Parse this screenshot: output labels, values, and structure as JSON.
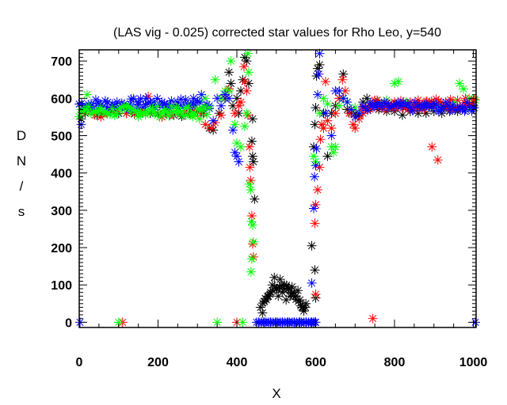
{
  "chart_data": {
    "type": "scatter",
    "title": "(LAS vig - 0.025) corrected star values for Rho Leo, y=540",
    "xlabel": "X",
    "ylabel": "DN/s",
    "ylabel_chars": [
      "D",
      "N",
      "/",
      "s"
    ],
    "xlim": [
      0,
      1007
    ],
    "ylim": [
      -14,
      730
    ],
    "xticks": [
      0,
      200,
      400,
      600,
      800,
      1000
    ],
    "xtick_labels": [
      "0",
      "200",
      "400",
      "600",
      "800",
      "1000"
    ],
    "yticks": [
      0,
      100,
      200,
      300,
      400,
      500,
      600,
      700
    ],
    "ytick_labels": [
      "0",
      "100",
      "200",
      "300",
      "400",
      "500",
      "600",
      "700"
    ],
    "x_minor_step": 50,
    "y_minor_step": 10,
    "grid": false,
    "marker": "asterisk",
    "series": [
      {
        "name": "black",
        "color": "#000000",
        "points": [
          [
            5,
            545
          ],
          [
            15,
            560
          ],
          [
            30,
            565
          ],
          [
            45,
            555
          ],
          [
            60,
            560
          ],
          [
            80,
            565
          ],
          [
            100,
            560
          ],
          [
            120,
            560
          ],
          [
            140,
            558
          ],
          [
            160,
            562
          ],
          [
            180,
            560
          ],
          [
            200,
            558
          ],
          [
            220,
            560
          ],
          [
            240,
            555
          ],
          [
            260,
            552
          ],
          [
            280,
            560
          ],
          [
            300,
            565
          ],
          [
            315,
            560
          ],
          [
            330,
            520
          ],
          [
            340,
            515
          ],
          [
            355,
            560
          ],
          [
            370,
            600
          ],
          [
            380,
            670
          ],
          [
            385,
            640
          ],
          [
            390,
            580
          ],
          [
            400,
            600
          ],
          [
            405,
            560
          ],
          [
            410,
            620
          ],
          [
            415,
            650
          ],
          [
            420,
            710
          ],
          [
            425,
            700
          ],
          [
            430,
            640
          ],
          [
            440,
            545
          ],
          [
            438,
            485
          ],
          [
            440,
            445
          ],
          [
            442,
            430
          ],
          [
            445,
            330
          ],
          [
            455,
            0
          ],
          [
            465,
            25
          ],
          [
            470,
            55
          ],
          [
            475,
            60
          ],
          [
            480,
            70
          ],
          [
            485,
            80
          ],
          [
            490,
            100
          ],
          [
            495,
            120
          ],
          [
            500,
            90
          ],
          [
            505,
            70
          ],
          [
            510,
            115
          ],
          [
            515,
            80
          ],
          [
            520,
            100
          ],
          [
            525,
            60
          ],
          [
            530,
            90
          ],
          [
            535,
            70
          ],
          [
            540,
            95
          ],
          [
            545,
            80
          ],
          [
            550,
            70
          ],
          [
            555,
            85
          ],
          [
            560,
            60
          ],
          [
            565,
            40
          ],
          [
            570,
            30
          ],
          [
            575,
            50
          ],
          [
            590,
            205
          ],
          [
            598,
            140
          ],
          [
            600,
            65
          ],
          [
            595,
            470
          ],
          [
            598,
            530
          ],
          [
            600,
            575
          ],
          [
            602,
            660
          ],
          [
            605,
            680
          ],
          [
            610,
            690
          ],
          [
            620,
            560
          ],
          [
            630,
            445
          ],
          [
            640,
            560
          ],
          [
            650,
            580
          ],
          [
            660,
            600
          ],
          [
            670,
            665
          ],
          [
            680,
            570
          ],
          [
            690,
            560
          ],
          [
            700,
            560
          ],
          [
            710,
            555
          ],
          [
            720,
            590
          ],
          [
            730,
            600
          ],
          [
            740,
            575
          ],
          [
            760,
            570
          ],
          [
            780,
            565
          ],
          [
            800,
            565
          ],
          [
            820,
            555
          ],
          [
            840,
            565
          ],
          [
            860,
            560
          ],
          [
            880,
            560
          ],
          [
            900,
            565
          ],
          [
            920,
            560
          ],
          [
            940,
            565
          ],
          [
            960,
            565
          ],
          [
            980,
            570
          ],
          [
            1000,
            575
          ]
        ]
      },
      {
        "name": "red",
        "color": "#ff0000",
        "points": [
          [
            10,
            565
          ],
          [
            25,
            570
          ],
          [
            40,
            555
          ],
          [
            55,
            550
          ],
          [
            70,
            560
          ],
          [
            90,
            565
          ],
          [
            110,
            0
          ],
          [
            120,
            560
          ],
          [
            140,
            560
          ],
          [
            160,
            565
          ],
          [
            175,
            605
          ],
          [
            190,
            565
          ],
          [
            210,
            550
          ],
          [
            230,
            555
          ],
          [
            250,
            560
          ],
          [
            270,
            565
          ],
          [
            290,
            570
          ],
          [
            310,
            560
          ],
          [
            320,
            530
          ],
          [
            335,
            520
          ],
          [
            345,
            535
          ],
          [
            360,
            555
          ],
          [
            370,
            610
          ],
          [
            380,
            625
          ],
          [
            395,
            560
          ],
          [
            400,
            0
          ],
          [
            405,
            580
          ],
          [
            410,
            590
          ],
          [
            418,
            685
          ],
          [
            420,
            645
          ],
          [
            425,
            620
          ],
          [
            428,
            555
          ],
          [
            432,
            470
          ],
          [
            433,
            415
          ],
          [
            435,
            380
          ],
          [
            438,
            285
          ],
          [
            440,
            210
          ],
          [
            442,
            175
          ],
          [
            600,
            75
          ],
          [
            598,
            265
          ],
          [
            600,
            315
          ],
          [
            605,
            355
          ],
          [
            610,
            415
          ],
          [
            612,
            490
          ],
          [
            615,
            530
          ],
          [
            620,
            520
          ],
          [
            625,
            645
          ],
          [
            630,
            540
          ],
          [
            640,
            520
          ],
          [
            650,
            560
          ],
          [
            660,
            600
          ],
          [
            668,
            650
          ],
          [
            675,
            620
          ],
          [
            685,
            560
          ],
          [
            695,
            530
          ],
          [
            700,
            520
          ],
          [
            710,
            545
          ],
          [
            720,
            560
          ],
          [
            735,
            575
          ],
          [
            745,
            10
          ],
          [
            760,
            590
          ],
          [
            780,
            595
          ],
          [
            800,
            590
          ],
          [
            820,
            580
          ],
          [
            840,
            590
          ],
          [
            860,
            595
          ],
          [
            880,
            590
          ],
          [
            895,
            470
          ],
          [
            910,
            435
          ],
          [
            920,
            580
          ],
          [
            940,
            590
          ],
          [
            960,
            595
          ],
          [
            980,
            600
          ],
          [
            1000,
            595
          ]
        ]
      },
      {
        "name": "green",
        "color": "#00ff00",
        "points": [
          [
            5,
            570
          ],
          [
            20,
            610
          ],
          [
            35,
            565
          ],
          [
            50,
            570
          ],
          [
            70,
            570
          ],
          [
            90,
            575
          ],
          [
            100,
            0
          ],
          [
            110,
            570
          ],
          [
            130,
            565
          ],
          [
            150,
            560
          ],
          [
            170,
            565
          ],
          [
            190,
            565
          ],
          [
            210,
            560
          ],
          [
            230,
            565
          ],
          [
            250,
            560
          ],
          [
            270,
            555
          ],
          [
            290,
            560
          ],
          [
            305,
            545
          ],
          [
            320,
            600
          ],
          [
            345,
            650
          ],
          [
            350,
            0
          ],
          [
            360,
            600
          ],
          [
            370,
            620
          ],
          [
            380,
            620
          ],
          [
            385,
            700
          ],
          [
            395,
            530
          ],
          [
            400,
            480
          ],
          [
            410,
            470
          ],
          [
            415,
            0
          ],
          [
            420,
            525
          ],
          [
            425,
            560
          ],
          [
            428,
            720
          ],
          [
            430,
            670
          ],
          [
            432,
            370
          ],
          [
            435,
            355
          ],
          [
            437,
            270
          ],
          [
            440,
            260
          ],
          [
            442,
            215
          ],
          [
            438,
            170
          ],
          [
            436,
            135
          ],
          [
            595,
            445
          ],
          [
            600,
            430
          ],
          [
            610,
            560
          ],
          [
            620,
            600
          ],
          [
            630,
            585
          ],
          [
            640,
            470
          ],
          [
            645,
            455
          ],
          [
            650,
            470
          ],
          [
            660,
            580
          ],
          [
            670,
            600
          ],
          [
            680,
            590
          ],
          [
            700,
            575
          ],
          [
            720,
            575
          ],
          [
            740,
            580
          ],
          [
            760,
            590
          ],
          [
            780,
            595
          ],
          [
            800,
            640
          ],
          [
            810,
            645
          ],
          [
            830,
            590
          ],
          [
            850,
            575
          ],
          [
            870,
            580
          ],
          [
            890,
            580
          ],
          [
            910,
            575
          ],
          [
            930,
            580
          ],
          [
            950,
            590
          ],
          [
            965,
            640
          ],
          [
            975,
            625
          ],
          [
            990,
            600
          ],
          [
            1005,
            595
          ]
        ]
      },
      {
        "name": "blue",
        "color": "#0000ff",
        "points": [
          [
            2,
            0
          ],
          [
            5,
            530
          ],
          [
            15,
            575
          ],
          [
            30,
            580
          ],
          [
            50,
            585
          ],
          [
            70,
            575
          ],
          [
            90,
            580
          ],
          [
            110,
            580
          ],
          [
            130,
            585
          ],
          [
            150,
            590
          ],
          [
            170,
            600
          ],
          [
            190,
            590
          ],
          [
            210,
            590
          ],
          [
            230,
            585
          ],
          [
            250,
            590
          ],
          [
            270,
            585
          ],
          [
            290,
            600
          ],
          [
            310,
            610
          ],
          [
            330,
            580
          ],
          [
            340,
            540
          ],
          [
            350,
            600
          ],
          [
            360,
            580
          ],
          [
            370,
            610
          ],
          [
            380,
            600
          ],
          [
            390,
            515
          ],
          [
            395,
            455
          ],
          [
            400,
            445
          ],
          [
            405,
            430
          ],
          [
            455,
            0
          ],
          [
            470,
            0
          ],
          [
            485,
            0
          ],
          [
            500,
            0
          ],
          [
            515,
            0
          ],
          [
            530,
            0
          ],
          [
            545,
            0
          ],
          [
            560,
            0
          ],
          [
            575,
            0
          ],
          [
            590,
            0
          ],
          [
            598,
            0
          ],
          [
            590,
            105
          ],
          [
            595,
            305
          ],
          [
            597,
            390
          ],
          [
            600,
            420
          ],
          [
            602,
            465
          ],
          [
            605,
            610
          ],
          [
            608,
            665
          ],
          [
            610,
            720
          ],
          [
            625,
            560
          ],
          [
            640,
            500
          ],
          [
            650,
            620
          ],
          [
            660,
            620
          ],
          [
            670,
            600
          ],
          [
            680,
            590
          ],
          [
            690,
            570
          ],
          [
            700,
            550
          ],
          [
            710,
            560
          ],
          [
            720,
            575
          ],
          [
            740,
            580
          ],
          [
            760,
            585
          ],
          [
            780,
            580
          ],
          [
            800,
            575
          ],
          [
            820,
            580
          ],
          [
            840,
            575
          ],
          [
            860,
            575
          ],
          [
            880,
            580
          ],
          [
            900,
            575
          ],
          [
            920,
            570
          ],
          [
            940,
            575
          ],
          [
            960,
            570
          ],
          [
            980,
            575
          ],
          [
            1000,
            580
          ],
          [
            1005,
            0
          ]
        ]
      }
    ]
  }
}
